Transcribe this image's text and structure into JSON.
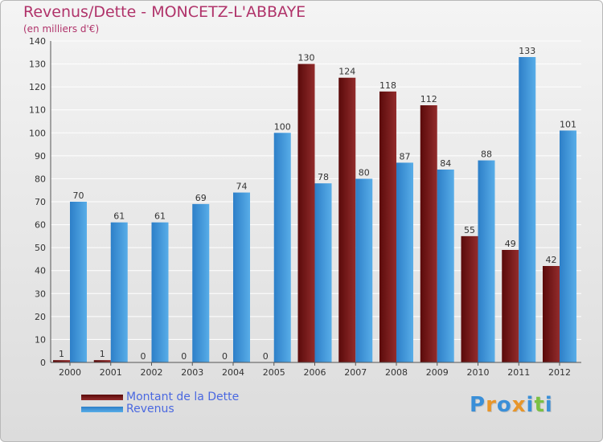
{
  "title": "Revenus/Dette - MONCETZ-L'ABBAYE",
  "subtitle": "(en milliers d'€)",
  "colors": {
    "debt_dark": "#5a0a0a",
    "debt_light": "#922c2c",
    "revenue_dark": "#2d7fc8",
    "revenue_light": "#58ade8",
    "title": "#b0336a",
    "legend_text": "#4a68e0"
  },
  "legend": {
    "debt_label": "Montant de la Dette",
    "revenue_label": "Revenus"
  },
  "logo": {
    "text": "Proxiti",
    "letter_colors": [
      "#3a8fd8",
      "#e8962a",
      "#3a8fd8",
      "#e8962a",
      "#3a8fd8",
      "#7ac043",
      "#3a8fd8"
    ]
  },
  "chart_data": {
    "type": "bar",
    "categories": [
      "2000",
      "2001",
      "2002",
      "2003",
      "2004",
      "2005",
      "2006",
      "2007",
      "2008",
      "2009",
      "2010",
      "2011",
      "2012"
    ],
    "series": [
      {
        "name": "Montant de la Dette",
        "values": [
          1,
          1,
          0,
          0,
          0,
          0,
          130,
          124,
          118,
          112,
          55,
          49,
          42
        ]
      },
      {
        "name": "Revenus",
        "values": [
          70,
          61,
          61,
          69,
          74,
          100,
          78,
          80,
          87,
          84,
          88,
          133,
          101
        ]
      }
    ],
    "ylim": [
      0,
      140
    ],
    "yticks": [
      0,
      10,
      20,
      30,
      40,
      50,
      60,
      70,
      80,
      90,
      100,
      110,
      120,
      130,
      140
    ],
    "grid": true,
    "legend_position": "bottom-left"
  }
}
